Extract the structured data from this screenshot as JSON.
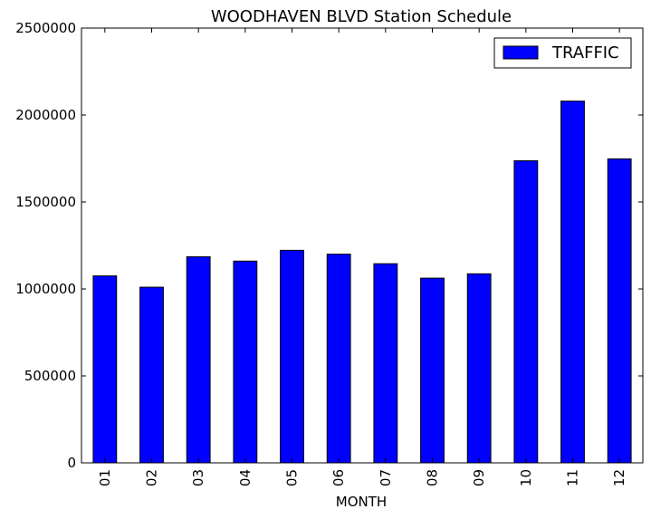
{
  "chart_data": {
    "type": "bar",
    "title": "WOODHAVEN BLVD Station Schedule",
    "xlabel": "MONTH",
    "ylabel": "",
    "categories": [
      "01",
      "02",
      "03",
      "04",
      "05",
      "06",
      "07",
      "08",
      "09",
      "10",
      "11",
      "12"
    ],
    "series": [
      {
        "name": "TRAFFIC",
        "color": "#0000ff",
        "values": [
          1075000,
          1010000,
          1185000,
          1160000,
          1222000,
          1200000,
          1145000,
          1062000,
          1087000,
          1737000,
          2080000,
          1748000
        ]
      }
    ],
    "ylim": [
      0,
      2500000
    ],
    "yticks": [
      0,
      500000,
      1000000,
      1500000,
      2000000,
      2500000
    ],
    "ytick_labels": [
      "0",
      "500000",
      "1000000",
      "1500000",
      "2000000",
      "2500000"
    ],
    "grid": false,
    "legend_position": "top-right"
  }
}
